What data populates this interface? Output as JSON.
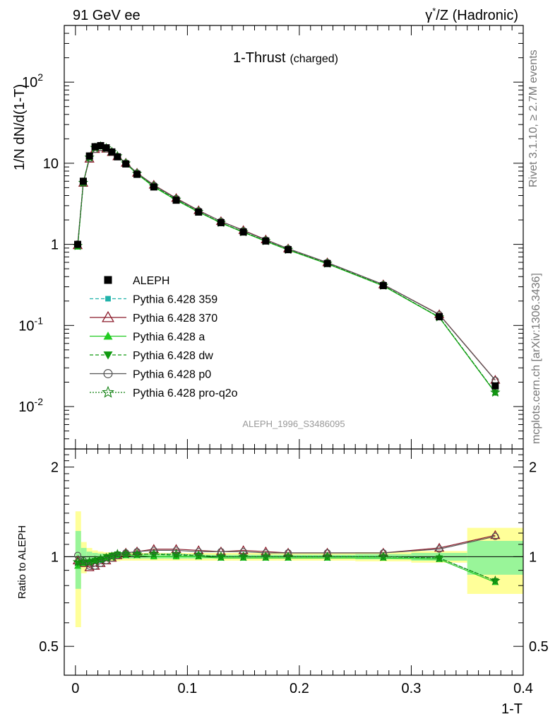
{
  "header": {
    "left": "91 GeV ee",
    "right_prefix": "γ",
    "right_sup": "*",
    "right_suffix": "/Z (Hadronic)"
  },
  "side_labels": {
    "rivet": "Rivet 3.1.10, ≥ 2.7M events",
    "mcplots": "mcplots.cern.ch [arXiv:1306.3436]"
  },
  "main_plot": {
    "title_main": "1-Thrust",
    "title_sub": "(charged)",
    "ylabel": "1/N dN/d(1-T)",
    "analysis_tag": "ALEPH_1996_S3486095",
    "y_ticks": [
      {
        "base": "10",
        "exp": "-2"
      },
      {
        "base": "10",
        "exp": "-1"
      },
      {
        "base": "1",
        "exp": ""
      },
      {
        "base": "10",
        "exp": ""
      },
      {
        "base": "10",
        "exp": "2"
      }
    ]
  },
  "ratio_plot": {
    "ylabel": "Ratio to ALEPH",
    "y_ticks": [
      "0.5",
      "1",
      "2"
    ]
  },
  "x_axis": {
    "label": "1-T",
    "ticks": [
      "0",
      "0.1",
      "0.2",
      "0.3",
      "0.4"
    ]
  },
  "legend": [
    {
      "label": "ALEPH",
      "color": "#000000",
      "marker": "square-filled",
      "line": "none"
    },
    {
      "label": "Pythia 6.428 359",
      "color": "#20b2aa",
      "marker": "square-small",
      "line": "dashed"
    },
    {
      "label": "Pythia 6.428 370",
      "color": "#8b1a2a",
      "marker": "triangle-open",
      "line": "solid"
    },
    {
      "label": "Pythia 6.428 a",
      "color": "#22cc22",
      "marker": "triangle-filled",
      "line": "solid"
    },
    {
      "label": "Pythia 6.428 dw",
      "color": "#119911",
      "marker": "triangle-down-filled",
      "line": "dashed"
    },
    {
      "label": "Pythia 6.428 p0",
      "color": "#555555",
      "marker": "circle-open",
      "line": "solid"
    },
    {
      "label": "Pythia 6.428 pro-q2o",
      "color": "#108010",
      "marker": "star",
      "line": "dotted"
    }
  ],
  "chart_data": {
    "type": "line",
    "log_y": true,
    "xlim": [
      -0.01,
      0.4
    ],
    "ylim": [
      0.003,
      500
    ],
    "ratio_ylim": [
      0.4,
      2.3
    ],
    "x": [
      0.002,
      0.007,
      0.0125,
      0.0175,
      0.0225,
      0.0275,
      0.0325,
      0.0375,
      0.045,
      0.055,
      0.07,
      0.09,
      0.11,
      0.13,
      0.15,
      0.17,
      0.19,
      0.225,
      0.275,
      0.325,
      0.375
    ],
    "x_low": [
      0.0,
      0.005,
      0.01,
      0.015,
      0.02,
      0.025,
      0.03,
      0.035,
      0.04,
      0.05,
      0.06,
      0.08,
      0.1,
      0.12,
      0.14,
      0.16,
      0.18,
      0.2,
      0.25,
      0.3,
      0.35
    ],
    "x_high": [
      0.005,
      0.01,
      0.015,
      0.02,
      0.025,
      0.03,
      0.035,
      0.04,
      0.05,
      0.06,
      0.08,
      0.1,
      0.12,
      0.14,
      0.16,
      0.18,
      0.2,
      0.25,
      0.3,
      0.35,
      0.4
    ],
    "data": [
      1.0,
      6.0,
      12.3,
      16.0,
      16.5,
      15.5,
      13.8,
      12.0,
      9.8,
      7.3,
      5.1,
      3.5,
      2.5,
      1.85,
      1.42,
      1.1,
      0.86,
      0.58,
      0.31,
      0.128,
      0.018
    ],
    "ratio_band_stat": [
      0.22,
      0.07,
      0.04,
      0.03,
      0.025,
      0.02,
      0.02,
      0.02,
      0.015,
      0.015,
      0.015,
      0.015,
      0.015,
      0.015,
      0.015,
      0.015,
      0.015,
      0.015,
      0.02,
      0.03,
      0.13
    ],
    "ratio_band_total": [
      0.42,
      0.12,
      0.07,
      0.05,
      0.04,
      0.035,
      0.035,
      0.035,
      0.03,
      0.03,
      0.03,
      0.03,
      0.03,
      0.03,
      0.03,
      0.03,
      0.03,
      0.03,
      0.035,
      0.045,
      0.25
    ],
    "series": [
      {
        "name": "Pythia 6.428 359",
        "ratio": [
          0.94,
          0.95,
          0.96,
          0.96,
          0.97,
          0.99,
          1.01,
          1.02,
          1.02,
          1.02,
          1.02,
          1.02,
          1.01,
          1.0,
          1.0,
          1.0,
          1.0,
          1.0,
          1.0,
          0.99,
          0.83
        ]
      },
      {
        "name": "Pythia 6.428 370",
        "ratio": [
          0.97,
          0.95,
          0.92,
          0.93,
          0.95,
          0.97,
          0.99,
          1.01,
          1.03,
          1.04,
          1.06,
          1.06,
          1.05,
          1.04,
          1.05,
          1.04,
          1.03,
          1.03,
          1.03,
          1.07,
          1.18
        ]
      },
      {
        "name": "Pythia 6.428 a",
        "ratio": [
          0.93,
          0.95,
          0.96,
          0.97,
          0.98,
          0.99,
          1.0,
          1.01,
          1.01,
          1.01,
          1.0,
          1.0,
          1.0,
          0.99,
          0.99,
          0.99,
          0.99,
          0.99,
          0.99,
          0.98,
          0.82
        ]
      },
      {
        "name": "Pythia 6.428 dw",
        "ratio": [
          0.95,
          0.96,
          0.96,
          0.97,
          0.98,
          1.0,
          1.01,
          1.02,
          1.02,
          1.02,
          1.02,
          1.01,
          1.01,
          1.0,
          1.0,
          1.0,
          1.0,
          1.0,
          1.0,
          0.99,
          0.83
        ]
      },
      {
        "name": "Pythia 6.428 p0",
        "ratio": [
          1.01,
          0.97,
          0.93,
          0.93,
          0.95,
          0.97,
          0.99,
          1.01,
          1.03,
          1.04,
          1.05,
          1.05,
          1.04,
          1.04,
          1.04,
          1.03,
          1.03,
          1.03,
          1.03,
          1.06,
          1.17
        ]
      },
      {
        "name": "Pythia 6.428 pro-q2o",
        "ratio": [
          0.96,
          0.96,
          0.96,
          0.97,
          0.98,
          0.99,
          1.0,
          1.02,
          1.02,
          1.02,
          1.02,
          1.02,
          1.01,
          1.0,
          1.0,
          1.0,
          1.0,
          1.0,
          1.0,
          0.99,
          0.83
        ]
      }
    ]
  }
}
